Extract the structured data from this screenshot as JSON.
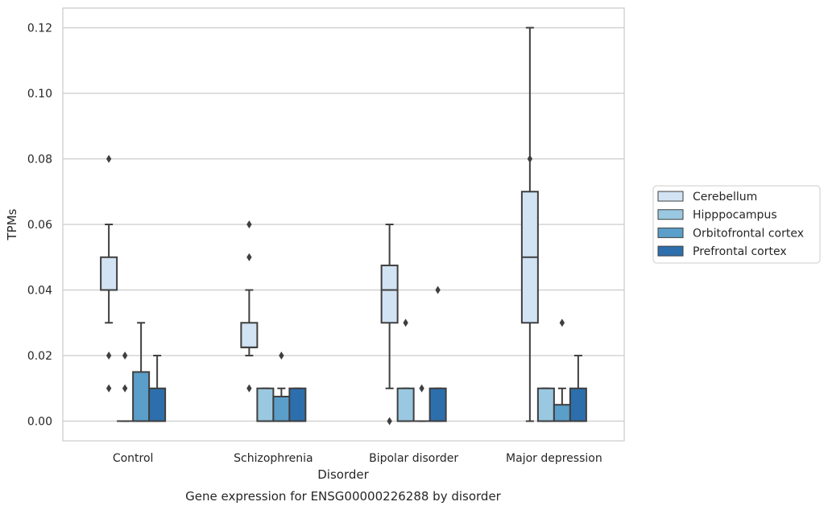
{
  "chart_data": {
    "type": "box",
    "caption": "Gene expression for ENSG00000226288 by disorder",
    "xlabel": "Disorder",
    "ylabel": "TPMs",
    "ylim": [
      -0.006,
      0.126
    ],
    "yticks": [
      0.0,
      0.02,
      0.04,
      0.06,
      0.08,
      0.1,
      0.12
    ],
    "ytick_labels": [
      "0.00",
      "0.02",
      "0.04",
      "0.06",
      "0.08",
      "0.10",
      "0.12"
    ],
    "grid": "horizontal",
    "legend_position": "right",
    "categories": [
      "Control",
      "Schizophrenia",
      "Bipolar disorder",
      "Major depression"
    ],
    "series": [
      {
        "name": "Cerebellum",
        "color": "#d2e3f3",
        "boxes": [
          {
            "whislo": 0.03,
            "q1": 0.04,
            "med": 0.04,
            "q3": 0.05,
            "whishi": 0.06,
            "fliers": [
              0.08,
              0.02,
              0.01
            ]
          },
          {
            "whislo": 0.02,
            "q1": 0.0225,
            "med": 0.0225,
            "q3": 0.03,
            "whishi": 0.04,
            "fliers": [
              0.06,
              0.05,
              0.01
            ]
          },
          {
            "whislo": 0.01,
            "q1": 0.03,
            "med": 0.04,
            "q3": 0.0475,
            "whishi": 0.06,
            "fliers": [
              0.0
            ]
          },
          {
            "whislo": 0.0,
            "q1": 0.03,
            "med": 0.05,
            "q3": 0.07,
            "whishi": 0.12,
            "fliers": [
              0.08
            ]
          }
        ]
      },
      {
        "name": "Hipppocampus",
        "color": "#9ac8e0",
        "boxes": [
          {
            "whislo": 0.0,
            "q1": 0.0,
            "med": 0.0,
            "q3": 0.0,
            "whishi": 0.0,
            "fliers": [
              0.02,
              0.01
            ]
          },
          {
            "whislo": 0.0,
            "q1": 0.0,
            "med": 0.0,
            "q3": 0.01,
            "whishi": 0.01,
            "fliers": []
          },
          {
            "whislo": 0.0,
            "q1": 0.0,
            "med": 0.0,
            "q3": 0.01,
            "whishi": 0.01,
            "fliers": [
              0.03
            ]
          },
          {
            "whislo": 0.0,
            "q1": 0.0,
            "med": 0.0,
            "q3": 0.01,
            "whishi": 0.01,
            "fliers": []
          }
        ]
      },
      {
        "name": "Orbitofrontal cortex",
        "color": "#5a9ec9",
        "boxes": [
          {
            "whislo": 0.0,
            "q1": 0.0,
            "med": 0.0,
            "q3": 0.015,
            "whishi": 0.03,
            "fliers": []
          },
          {
            "whislo": 0.0,
            "q1": 0.0,
            "med": 0.0,
            "q3": 0.0075,
            "whishi": 0.01,
            "fliers": [
              0.02
            ]
          },
          {
            "whislo": 0.0,
            "q1": 0.0,
            "med": 0.0,
            "q3": 0.0,
            "whishi": 0.0,
            "fliers": [
              0.01
            ]
          },
          {
            "whislo": 0.0,
            "q1": 0.0,
            "med": 0.0,
            "q3": 0.005,
            "whishi": 0.01,
            "fliers": [
              0.03
            ]
          }
        ]
      },
      {
        "name": "Prefrontal cortex",
        "color": "#2d6fad",
        "boxes": [
          {
            "whislo": 0.0,
            "q1": 0.0,
            "med": 0.0,
            "q3": 0.01,
            "whishi": 0.02,
            "fliers": []
          },
          {
            "whislo": 0.0,
            "q1": 0.0,
            "med": 0.0,
            "q3": 0.01,
            "whishi": 0.01,
            "fliers": []
          },
          {
            "whislo": 0.0,
            "q1": 0.0,
            "med": 0.0,
            "q3": 0.01,
            "whishi": 0.01,
            "fliers": [
              0.04
            ]
          },
          {
            "whislo": 0.0,
            "q1": 0.0,
            "med": 0.0,
            "q3": 0.01,
            "whishi": 0.02,
            "fliers": []
          }
        ]
      }
    ]
  }
}
